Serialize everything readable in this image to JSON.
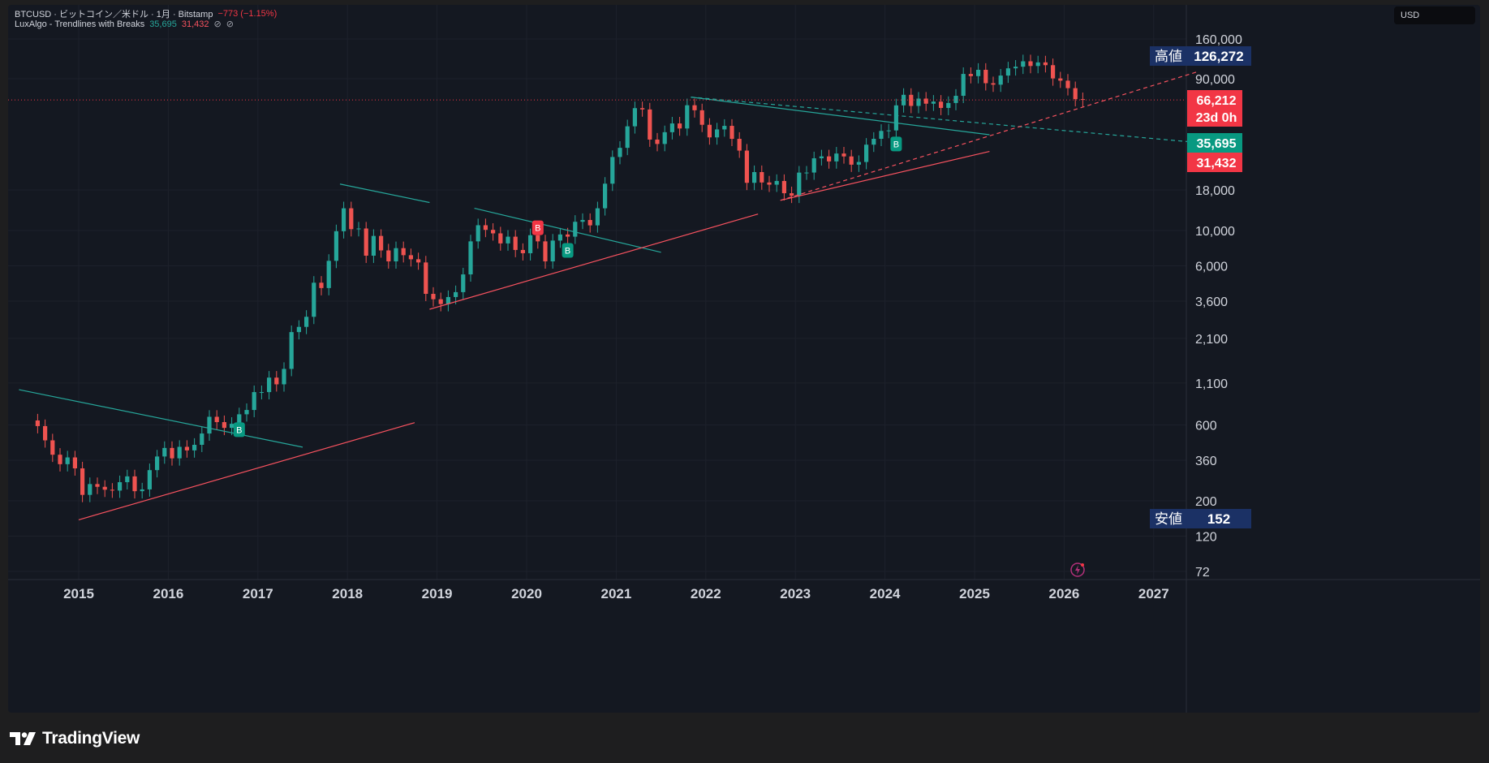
{
  "legend": {
    "symbol": "BTCUSD · ビットコイン／米ドル · 1月 · Bitstamp",
    "change": "−773 (−1.15%)",
    "indicator": "LuxAlgo - Trendlines with Breaks",
    "upper_value": "35,695",
    "lower_value": "31,432",
    "icons": [
      "hidden-icon",
      "hidden-icon"
    ]
  },
  "currency_button": "USD",
  "footer": {
    "brand": "TradingView",
    "logo_icon": "tradingview-logo-icon"
  },
  "colors": {
    "bull": "#26a69a",
    "bear": "#ef5350",
    "upper_trend": "#26a69a",
    "lower_trend": "#f7525f",
    "high_low_label_bg": "#1b3165",
    "grid": "#1d212b",
    "background": "#141821"
  },
  "chart_data": {
    "type": "candlestick",
    "title": "BTCUSD · ビットコイン／米ドル · 1月 · Bitstamp",
    "scale": "log",
    "x_range": [
      "2014-05",
      "2027-06"
    ],
    "y_range": [
      62,
      200000
    ],
    "y_ticks": [
      160000,
      90000,
      18000,
      10000,
      6000,
      3600,
      2100,
      1100,
      600,
      360,
      200,
      120,
      72
    ],
    "y_tick_labels": [
      "160,000",
      "90,000",
      "18,000",
      "10,000",
      "6,000",
      "3,600",
      "2,100",
      "1,100",
      "600",
      "360",
      "200",
      "120",
      "72"
    ],
    "x_ticks": [
      "2015",
      "2016",
      "2017",
      "2018",
      "2019",
      "2020",
      "2021",
      "2022",
      "2023",
      "2024",
      "2025",
      "2026",
      "2027"
    ],
    "x_tick_values": [
      2015,
      2016,
      2017,
      2018,
      2019,
      2020,
      2021,
      2022,
      2023,
      2024,
      2025,
      2026,
      2027
    ],
    "anchors": [
      [
        "2014-06",
        640
      ],
      [
        "2014-07",
        590
      ],
      [
        "2014-08",
        480
      ],
      [
        "2014-09",
        390
      ],
      [
        "2014-10",
        340
      ],
      [
        "2014-11",
        375
      ],
      [
        "2014-12",
        320
      ],
      [
        "2015-01",
        218
      ],
      [
        "2015-02",
        255
      ],
      [
        "2015-03",
        245
      ],
      [
        "2015-04",
        235
      ],
      [
        "2015-05",
        232
      ],
      [
        "2015-06",
        262
      ],
      [
        "2015-07",
        285
      ],
      [
        "2015-08",
        230
      ],
      [
        "2015-09",
        236
      ],
      [
        "2015-10",
        312
      ],
      [
        "2015-11",
        380
      ],
      [
        "2015-12",
        430
      ],
      [
        "2016-01",
        370
      ],
      [
        "2016-02",
        437
      ],
      [
        "2016-03",
        415
      ],
      [
        "2016-04",
        450
      ],
      [
        "2016-05",
        530
      ],
      [
        "2016-06",
        675
      ],
      [
        "2016-07",
        625
      ],
      [
        "2016-08",
        575
      ],
      [
        "2016-09",
        610
      ],
      [
        "2016-10",
        700
      ],
      [
        "2016-11",
        745
      ],
      [
        "2016-12",
        965
      ],
      [
        "2017-01",
        965
      ],
      [
        "2017-02",
        1190
      ],
      [
        "2017-03",
        1080
      ],
      [
        "2017-04",
        1350
      ],
      [
        "2017-05",
        2300
      ],
      [
        "2017-06",
        2480
      ],
      [
        "2017-07",
        2870
      ],
      [
        "2017-08",
        4700
      ],
      [
        "2017-09",
        4350
      ],
      [
        "2017-10",
        6450
      ],
      [
        "2017-11",
        9900
      ],
      [
        "2017-12",
        13800
      ],
      [
        "2018-01",
        10200
      ],
      [
        "2018-02",
        10300
      ],
      [
        "2018-03",
        6950
      ],
      [
        "2018-04",
        9250
      ],
      [
        "2018-05",
        7500
      ],
      [
        "2018-06",
        6400
      ],
      [
        "2018-07",
        7750
      ],
      [
        "2018-08",
        7000
      ],
      [
        "2018-09",
        6600
      ],
      [
        "2018-10",
        6300
      ],
      [
        "2018-11",
        4000
      ],
      [
        "2018-12",
        3700
      ],
      [
        "2019-01",
        3450
      ],
      [
        "2019-02",
        3820
      ],
      [
        "2019-03",
        4100
      ],
      [
        "2019-04",
        5300
      ],
      [
        "2019-05",
        8550
      ],
      [
        "2019-06",
        10800
      ],
      [
        "2019-07",
        10100
      ],
      [
        "2019-08",
        9600
      ],
      [
        "2019-09",
        8300
      ],
      [
        "2019-10",
        9150
      ],
      [
        "2019-11",
        7550
      ],
      [
        "2019-12",
        7200
      ],
      [
        "2020-01",
        9350
      ],
      [
        "2020-02",
        8550
      ],
      [
        "2020-03",
        6400
      ],
      [
        "2020-04",
        8650
      ],
      [
        "2020-05",
        9450
      ],
      [
        "2020-06",
        9150
      ],
      [
        "2020-07",
        11350
      ],
      [
        "2020-08",
        11650
      ],
      [
        "2020-09",
        10780
      ],
      [
        "2020-10",
        13800
      ],
      [
        "2020-11",
        19700
      ],
      [
        "2020-12",
        28990
      ],
      [
        "2021-01",
        33100
      ],
      [
        "2021-02",
        45200
      ],
      [
        "2021-03",
        58800
      ],
      [
        "2021-04",
        57700
      ],
      [
        "2021-05",
        37300
      ],
      [
        "2021-06",
        35000
      ],
      [
        "2021-07",
        41500
      ],
      [
        "2021-08",
        47100
      ],
      [
        "2021-09",
        43800
      ],
      [
        "2021-10",
        61300
      ],
      [
        "2021-11",
        57000
      ],
      [
        "2021-12",
        46200
      ],
      [
        "2022-01",
        38500
      ],
      [
        "2022-02",
        43200
      ],
      [
        "2022-03",
        45500
      ],
      [
        "2022-04",
        37700
      ],
      [
        "2022-05",
        31800
      ],
      [
        "2022-06",
        19950
      ],
      [
        "2022-07",
        23300
      ],
      [
        "2022-08",
        20050
      ],
      [
        "2022-09",
        19420
      ],
      [
        "2022-10",
        20490
      ],
      [
        "2022-11",
        17160
      ],
      [
        "2022-12",
        16540
      ],
      [
        "2023-01",
        23130
      ],
      [
        "2023-02",
        23150
      ],
      [
        "2023-03",
        28460
      ],
      [
        "2023-04",
        29250
      ],
      [
        "2023-05",
        27200
      ],
      [
        "2023-06",
        30480
      ],
      [
        "2023-07",
        29230
      ],
      [
        "2023-08",
        25940
      ],
      [
        "2023-09",
        26970
      ],
      [
        "2023-10",
        34650
      ],
      [
        "2023-11",
        37720
      ],
      [
        "2023-12",
        42280
      ],
      [
        "2024-01",
        42580
      ],
      [
        "2024-02",
        61200
      ],
      [
        "2024-03",
        71300
      ],
      [
        "2024-04",
        60700
      ],
      [
        "2024-05",
        67500
      ],
      [
        "2024-06",
        62700
      ],
      [
        "2024-07",
        64600
      ],
      [
        "2024-08",
        58970
      ],
      [
        "2024-09",
        63330
      ],
      [
        "2024-10",
        70290
      ],
      [
        "2024-11",
        96450
      ],
      [
        "2024-12",
        93430
      ],
      [
        "2025-01",
        102400
      ],
      [
        "2025-02",
        84350
      ],
      [
        "2025-03",
        82550
      ],
      [
        "2025-04",
        94200
      ],
      [
        "2025-05",
        104600
      ],
      [
        "2025-06",
        107100
      ],
      [
        "2025-07",
        115800
      ],
      [
        "2025-08",
        108200
      ],
      [
        "2025-09",
        114000
      ],
      [
        "2025-10",
        109500
      ],
      [
        "2025-11",
        90400
      ],
      [
        "2025-12",
        87500
      ],
      [
        "2026-01",
        78500
      ],
      [
        "2026-02",
        66985
      ],
      [
        "2026-03",
        66212
      ]
    ],
    "trendlines_upper": [
      [
        [
          "2014-05",
          1000
        ],
        [
          "2017-07",
          435
        ]
      ],
      [
        [
          "2017-12",
          19600
        ],
        [
          "2018-12",
          15000
        ]
      ],
      [
        [
          "2019-06",
          13800
        ],
        [
          "2021-07",
          7300
        ]
      ],
      [
        [
          "2021-11",
          69000
        ],
        [
          "2025-03",
          40000
        ]
      ]
    ],
    "trendlines_upper_extended": [
      [
        [
          "2021-11",
          69000
        ],
        [
          "2027-07",
          35695
        ]
      ]
    ],
    "trendlines_lower": [
      [
        [
          "2015-01",
          152
        ],
        [
          "2018-10",
          620
        ]
      ],
      [
        [
          "2018-12",
          3200
        ],
        [
          "2022-08",
          12700
        ]
      ],
      [
        [
          "2022-11",
          15480
        ],
        [
          "2025-03",
          31432
        ]
      ]
    ],
    "trendlines_lower_extended": [
      [
        [
          "2022-11",
          15480
        ],
        [
          "2027-07",
          100000
        ]
      ]
    ],
    "break_labels": [
      {
        "date": "2016-10",
        "price": 560,
        "label": "B",
        "side": "up"
      },
      {
        "date": "2020-02",
        "price": 10400,
        "label": "B",
        "side": "down"
      },
      {
        "date": "2020-06",
        "price": 7500,
        "label": "B",
        "side": "up"
      },
      {
        "date": "2024-02",
        "price": 35000,
        "label": "B",
        "side": "up"
      }
    ],
    "current_price": {
      "value": "66,212",
      "countdown": "23d 0h"
    },
    "upper_value_label": "35,695",
    "lower_value_label": "31,432",
    "high": {
      "label": "高値",
      "value": "126,272",
      "price": 126272
    },
    "low": {
      "label": "安値",
      "value": "152",
      "price": 152
    }
  }
}
